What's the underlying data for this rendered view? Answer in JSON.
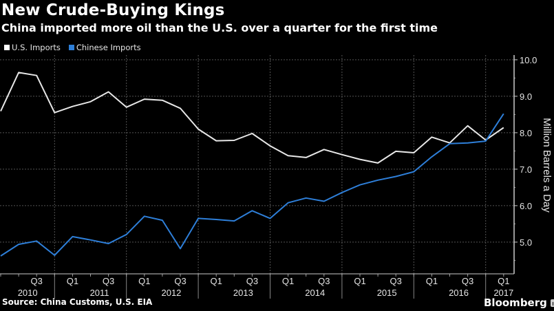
{
  "header": {
    "title": "New Crude-Buying Kings",
    "subtitle": "China imported more oil than the U.S. over a quarter for the first time"
  },
  "legend": [
    {
      "label": "U.S. Imports",
      "color": "#ffffff"
    },
    {
      "label": "Chinese Imports",
      "color": "#2e7fd9"
    }
  ],
  "footer": {
    "source": "Source: China Customs, U.S. EIA",
    "brand": "Bloomberg",
    "brand_icon": "chart-icon"
  },
  "chart_data": {
    "type": "line",
    "title": "New Crude-Buying Kings",
    "subtitle": "China imported more oil than the U.S. over a quarter for the first time",
    "xlabel": "",
    "ylabel": "Million Barrels a Day",
    "ylim": [
      4.13,
      10.13
    ],
    "yticks": [
      "5.0",
      "6.0",
      "7.0",
      "8.0",
      "9.0",
      "10.0"
    ],
    "ytick_values": [
      5,
      6,
      7,
      8,
      9,
      10
    ],
    "grid": true,
    "legend_position": "top-left",
    "y_axis_side": "right",
    "x": [
      "2010 Q1",
      "2010 Q2",
      "2010 Q3",
      "2010 Q4",
      "2011 Q1",
      "2011 Q2",
      "2011 Q3",
      "2011 Q4",
      "2012 Q1",
      "2012 Q2",
      "2012 Q3",
      "2012 Q4",
      "2013 Q1",
      "2013 Q2",
      "2013 Q3",
      "2013 Q4",
      "2014 Q1",
      "2014 Q2",
      "2014 Q3",
      "2014 Q4",
      "2015 Q1",
      "2015 Q2",
      "2015 Q3",
      "2015 Q4",
      "2016 Q1",
      "2016 Q2",
      "2016 Q3",
      "2016 Q4",
      "2017 Q1"
    ],
    "quarter_labels": [
      {
        "index": 2,
        "label": "Q3"
      },
      {
        "index": 4,
        "label": "Q1"
      },
      {
        "index": 6,
        "label": "Q3"
      },
      {
        "index": 8,
        "label": "Q1"
      },
      {
        "index": 10,
        "label": "Q3"
      },
      {
        "index": 12,
        "label": "Q1"
      },
      {
        "index": 14,
        "label": "Q3"
      },
      {
        "index": 16,
        "label": "Q1"
      },
      {
        "index": 18,
        "label": "Q3"
      },
      {
        "index": 20,
        "label": "Q1"
      },
      {
        "index": 22,
        "label": "Q3"
      },
      {
        "index": 24,
        "label": "Q1"
      },
      {
        "index": 26,
        "label": "Q3"
      },
      {
        "index": 28,
        "label": "Q1"
      }
    ],
    "year_labels": [
      {
        "label": "2010",
        "center_index": 1.5
      },
      {
        "label": "2011",
        "center_index": 5.5
      },
      {
        "label": "2012",
        "center_index": 9.5
      },
      {
        "label": "2013",
        "center_index": 13.5
      },
      {
        "label": "2014",
        "center_index": 17.5
      },
      {
        "label": "2015",
        "center_index": 21.5
      },
      {
        "label": "2016",
        "center_index": 25.5
      },
      {
        "label": "2017",
        "center_index": 28
      }
    ],
    "year_dividers": [
      3,
      7,
      11,
      15,
      19,
      23,
      27
    ],
    "series": [
      {
        "name": "U.S. Imports",
        "color": "#e8e8e8",
        "values": [
          8.59,
          9.65,
          9.57,
          8.55,
          8.72,
          8.85,
          9.12,
          8.7,
          8.92,
          8.89,
          8.67,
          8.1,
          7.78,
          7.79,
          7.98,
          7.64,
          7.37,
          7.32,
          7.54,
          7.4,
          7.27,
          7.17,
          7.49,
          7.45,
          7.88,
          7.72,
          8.19,
          7.8,
          8.14
        ]
      },
      {
        "name": "Chinese Imports",
        "color": "#2e7fd9",
        "values": [
          4.62,
          4.94,
          5.03,
          4.64,
          5.15,
          5.06,
          4.96,
          5.21,
          5.71,
          5.6,
          4.82,
          5.65,
          5.62,
          5.58,
          5.86,
          5.65,
          6.08,
          6.21,
          6.12,
          6.36,
          6.57,
          6.7,
          6.8,
          6.93,
          7.34,
          7.7,
          7.72,
          7.77,
          8.52
        ]
      }
    ]
  }
}
